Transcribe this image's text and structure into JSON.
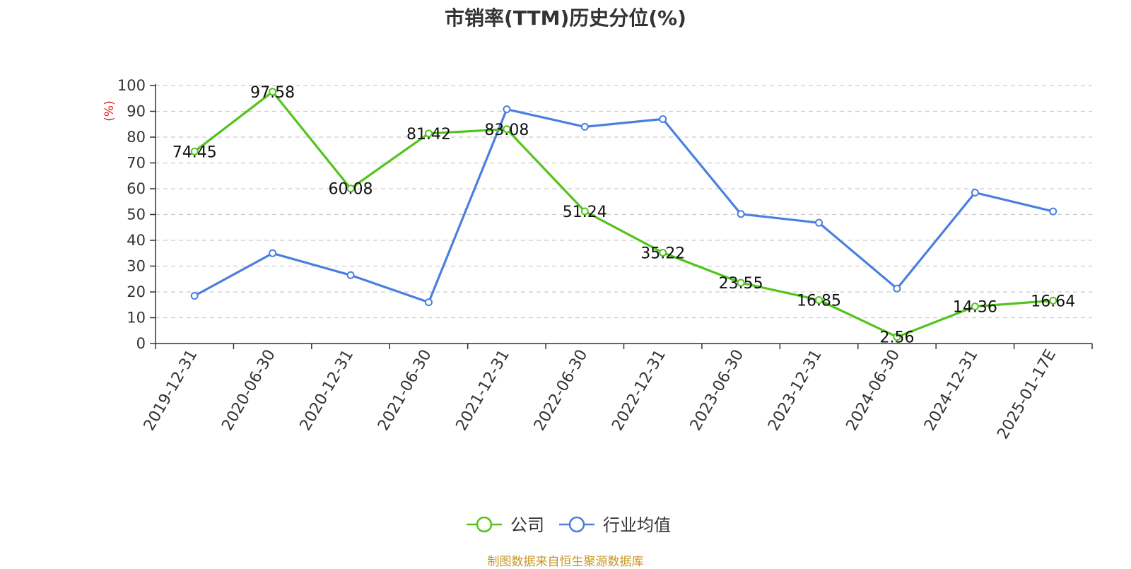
{
  "chart_data": {
    "type": "line",
    "title": "市销率(TTM)历史分位(%)",
    "ylabel": "(%)",
    "ylim": [
      0,
      100
    ],
    "yticks": [
      0,
      10,
      20,
      30,
      40,
      50,
      60,
      70,
      80,
      90,
      100
    ],
    "grid": true,
    "legend_position": "bottom-center",
    "categories": [
      "2019-12-31",
      "2020-06-30",
      "2020-12-31",
      "2021-06-30",
      "2021-12-31",
      "2022-06-30",
      "2022-12-31",
      "2023-06-30",
      "2023-12-31",
      "2024-06-30",
      "2024-12-31",
      "2025-01-17E"
    ],
    "series": [
      {
        "name": "公司",
        "color": "#52c41a",
        "values": [
          74.45,
          97.58,
          60.08,
          81.42,
          83.08,
          51.24,
          35.22,
          23.55,
          16.85,
          2.56,
          14.36,
          16.64
        ],
        "labels": [
          "74.45",
          "97.58",
          "60.08",
          "81.42",
          "83.08",
          "51.24",
          "35.22",
          "23.55",
          "16.85",
          "2.56",
          "14.36",
          "16.64"
        ]
      },
      {
        "name": "行业均值",
        "color": "#4a7fe0",
        "values": [
          18.5,
          35.0,
          26.5,
          16.0,
          90.8,
          84.0,
          87.0,
          50.2,
          46.8,
          21.3,
          58.5,
          51.2
        ]
      }
    ]
  },
  "source_text": "制图数据来自恒生聚源数据库"
}
